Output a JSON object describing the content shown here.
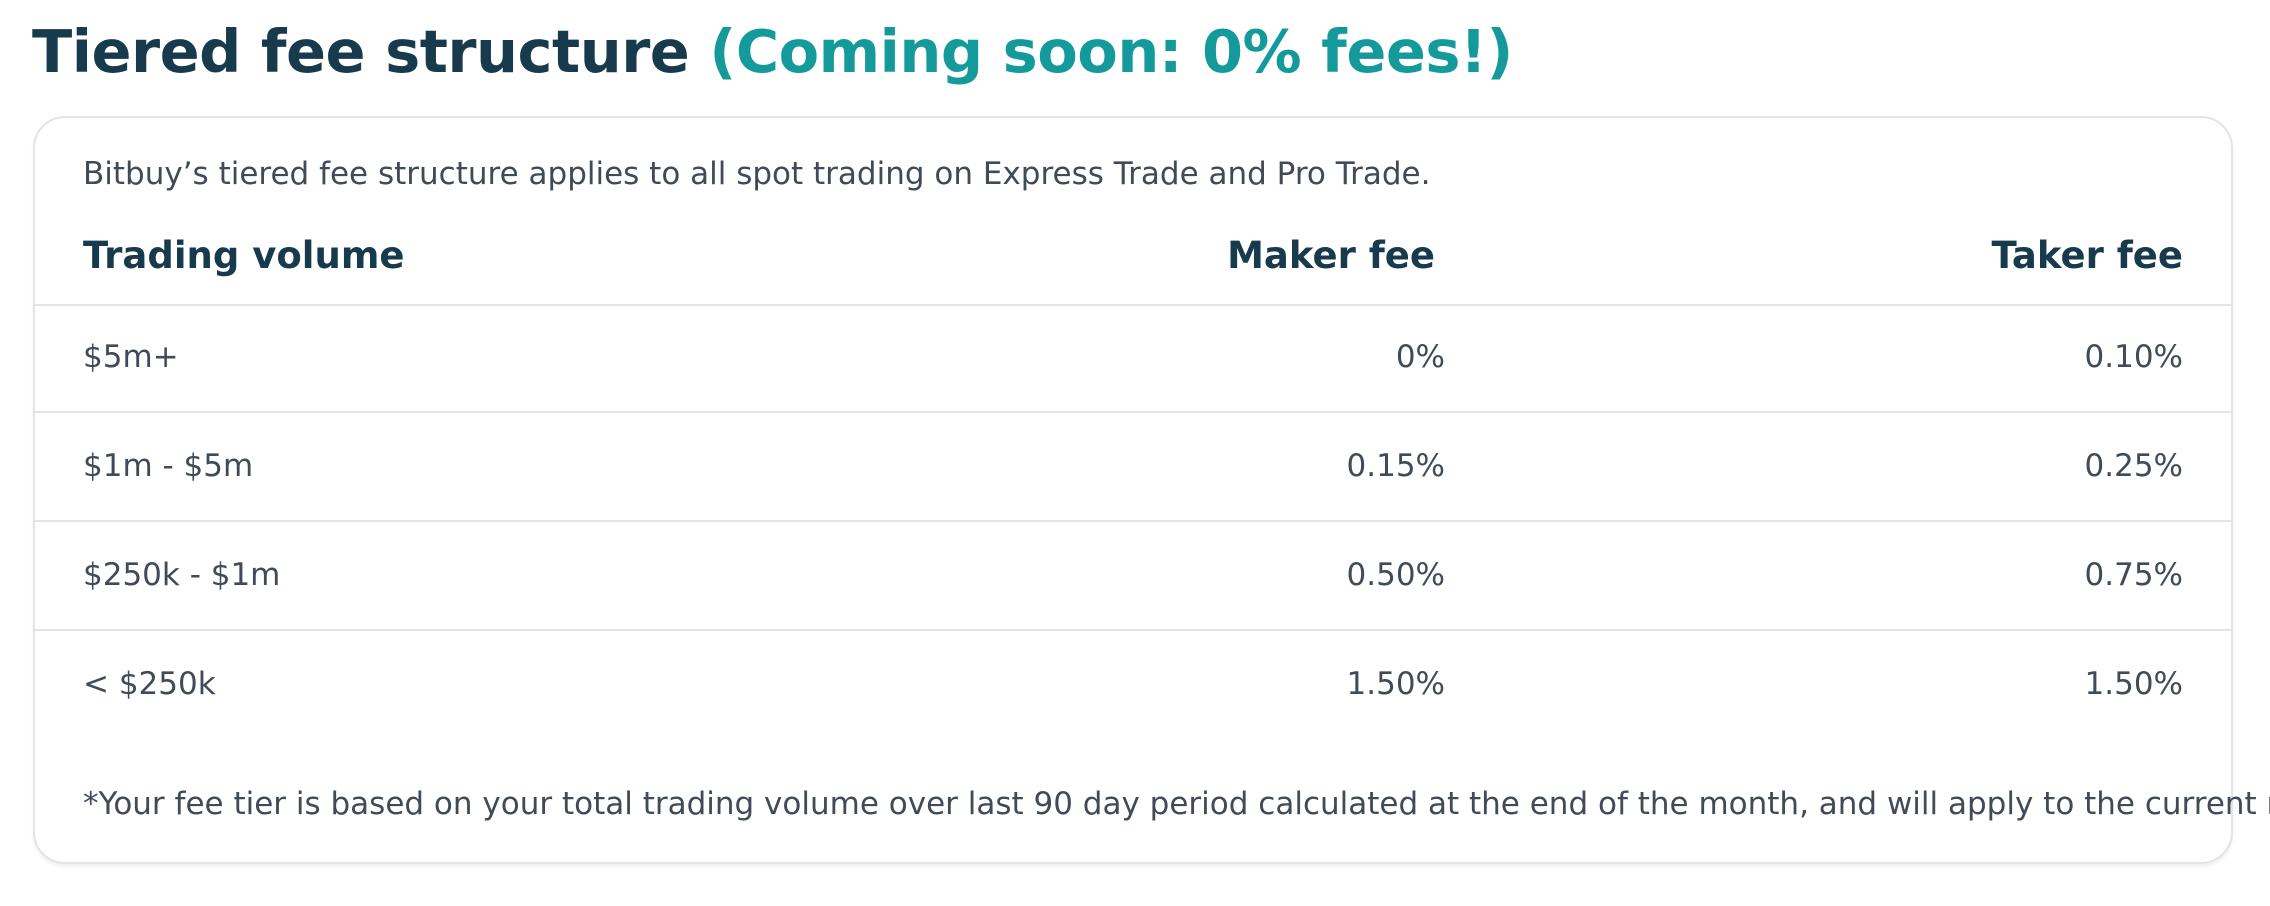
{
  "heading": {
    "title": "Tiered fee structure ",
    "highlight": "(Coming soon: 0% fees!)"
  },
  "card": {
    "intro": "Bitbuy’s tiered fee structure applies to all spot trading on Express Trade and Pro Trade.",
    "columns": {
      "volume": "Trading volume",
      "maker": "Maker fee",
      "taker": "Taker fee"
    },
    "rows": [
      {
        "volume": "$5m+",
        "maker": "0%",
        "taker": "0.10%"
      },
      {
        "volume": "$1m - $5m",
        "maker": "0.15%",
        "taker": "0.25%"
      },
      {
        "volume": "$250k - $1m",
        "maker": "0.50%",
        "taker": "0.75%"
      },
      {
        "volume": "< $250k",
        "maker": "1.50%",
        "taker": "1.50%"
      }
    ],
    "footnote": "*Your fee tier is based on your total trading volume over last 90 day period calculated at the end of the month, and will apply to the current month."
  },
  "colors": {
    "heading": "#173a4d",
    "accent": "#149a9a",
    "body_text": "#414b57",
    "border": "#e1e4e8"
  }
}
